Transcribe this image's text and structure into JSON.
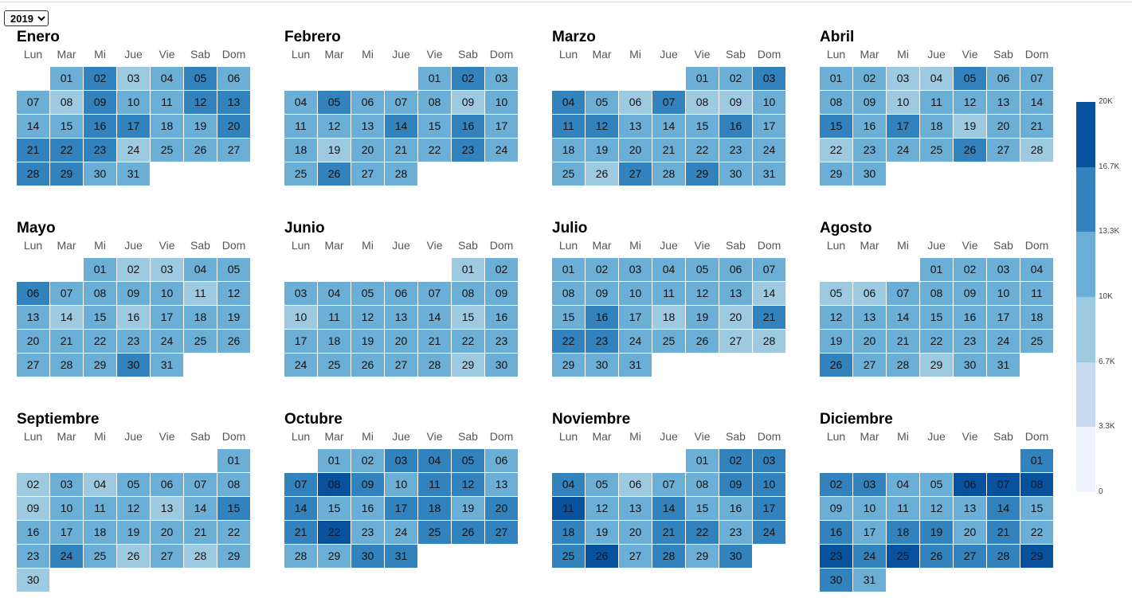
{
  "year_select": {
    "selected": "2019"
  },
  "weekdays": [
    "Lun",
    "Mar",
    "Mi",
    "Jue",
    "Vie",
    "Sab",
    "Dom"
  ],
  "palette": [
    "#eff3ff",
    "#c6dbef",
    "#9ecae1",
    "#6baed6",
    "#3182bd",
    "#08519c"
  ],
  "legend": {
    "ticks": [
      "20K",
      "16.7K",
      "13.3K",
      "10K",
      "6.7K",
      "3.3K",
      "0"
    ],
    "bands_top_to_bottom": [
      "#08519c",
      "#3182bd",
      "#6baed6",
      "#9ecae1",
      "#c6dbef",
      "#eff3ff"
    ]
  },
  "months": [
    {
      "name": "Enero",
      "start_offset": 1,
      "days": [
        "01",
        "02",
        "03",
        "04",
        "05",
        "06",
        "07",
        "08",
        "09",
        "10",
        "11",
        "12",
        "13",
        "14",
        "15",
        "16",
        "17",
        "18",
        "19",
        "20",
        "21",
        "22",
        "23",
        "24",
        "25",
        "26",
        "27",
        "28",
        "29",
        "30",
        "31"
      ],
      "levels": [
        3,
        4,
        2,
        3,
        4,
        3,
        3,
        2,
        4,
        3,
        3,
        4,
        4,
        3,
        3,
        4,
        4,
        3,
        3,
        4,
        4,
        4,
        4,
        2,
        3,
        3,
        3,
        4,
        4,
        3,
        3
      ]
    },
    {
      "name": "Febrero",
      "start_offset": 4,
      "days": [
        "01",
        "02",
        "03",
        "04",
        "05",
        "06",
        "07",
        "08",
        "09",
        "10",
        "11",
        "12",
        "13",
        "14",
        "15",
        "16",
        "17",
        "18",
        "19",
        "20",
        "21",
        "22",
        "23",
        "24",
        "25",
        "26",
        "27",
        "28"
      ],
      "levels": [
        3,
        4,
        3,
        3,
        4,
        3,
        3,
        3,
        2,
        3,
        3,
        3,
        3,
        4,
        3,
        4,
        3,
        3,
        2,
        3,
        3,
        3,
        4,
        3,
        3,
        4,
        3,
        3
      ]
    },
    {
      "name": "Marzo",
      "start_offset": 4,
      "days": [
        "01",
        "02",
        "03",
        "04",
        "05",
        "06",
        "07",
        "08",
        "09",
        "10",
        "11",
        "12",
        "13",
        "14",
        "15",
        "16",
        "17",
        "18",
        "19",
        "20",
        "21",
        "22",
        "23",
        "24",
        "25",
        "26",
        "27",
        "28",
        "29",
        "30",
        "31"
      ],
      "levels": [
        3,
        3,
        4,
        4,
        3,
        2,
        4,
        2,
        2,
        3,
        4,
        4,
        3,
        3,
        3,
        4,
        3,
        3,
        3,
        3,
        3,
        3,
        3,
        3,
        3,
        2,
        4,
        3,
        4,
        3,
        3
      ]
    },
    {
      "name": "Abril",
      "start_offset": 0,
      "days": [
        "01",
        "02",
        "03",
        "04",
        "05",
        "06",
        "07",
        "08",
        "09",
        "10",
        "11",
        "12",
        "13",
        "14",
        "15",
        "16",
        "17",
        "18",
        "19",
        "20",
        "21",
        "22",
        "23",
        "24",
        "25",
        "26",
        "27",
        "28",
        "29",
        "30"
      ],
      "levels": [
        3,
        3,
        2,
        2,
        4,
        3,
        3,
        3,
        3,
        2,
        3,
        3,
        3,
        3,
        4,
        3,
        4,
        3,
        2,
        3,
        3,
        2,
        3,
        3,
        3,
        4,
        3,
        2,
        3,
        3
      ]
    },
    {
      "name": "Mayo",
      "start_offset": 2,
      "days": [
        "01",
        "02",
        "03",
        "04",
        "05",
        "06",
        "07",
        "08",
        "09",
        "10",
        "11",
        "12",
        "13",
        "14",
        "15",
        "16",
        "17",
        "18",
        "19",
        "20",
        "21",
        "22",
        "23",
        "24",
        "25",
        "26",
        "27",
        "28",
        "29",
        "30",
        "31"
      ],
      "levels": [
        3,
        2,
        2,
        3,
        3,
        4,
        3,
        3,
        3,
        3,
        2,
        3,
        3,
        2,
        3,
        2,
        3,
        3,
        3,
        3,
        3,
        3,
        3,
        3,
        3,
        3,
        3,
        3,
        3,
        4,
        3
      ]
    },
    {
      "name": "Junio",
      "start_offset": 5,
      "days": [
        "01",
        "02",
        "03",
        "04",
        "05",
        "06",
        "07",
        "08",
        "09",
        "10",
        "11",
        "12",
        "13",
        "14",
        "15",
        "16",
        "17",
        "18",
        "19",
        "20",
        "21",
        "22",
        "23",
        "24",
        "25",
        "26",
        "27",
        "28",
        "29",
        "30"
      ],
      "levels": [
        2,
        3,
        3,
        3,
        3,
        3,
        3,
        3,
        3,
        2,
        3,
        3,
        3,
        3,
        2,
        3,
        3,
        3,
        3,
        3,
        3,
        3,
        3,
        3,
        3,
        3,
        3,
        3,
        2,
        3
      ]
    },
    {
      "name": "Julio",
      "start_offset": 0,
      "days": [
        "01",
        "02",
        "03",
        "04",
        "05",
        "06",
        "07",
        "08",
        "09",
        "10",
        "11",
        "12",
        "13",
        "14",
        "15",
        "16",
        "17",
        "18",
        "19",
        "20",
        "21",
        "22",
        "23",
        "24",
        "25",
        "26",
        "27",
        "28",
        "29",
        "30",
        "31"
      ],
      "levels": [
        3,
        3,
        3,
        3,
        3,
        3,
        3,
        3,
        3,
        3,
        3,
        3,
        3,
        2,
        3,
        4,
        3,
        2,
        3,
        2,
        4,
        4,
        4,
        3,
        3,
        3,
        2,
        2,
        3,
        3,
        3
      ]
    },
    {
      "name": "Agosto",
      "start_offset": 3,
      "days": [
        "01",
        "02",
        "03",
        "04",
        "05",
        "06",
        "07",
        "08",
        "09",
        "10",
        "11",
        "12",
        "13",
        "14",
        "15",
        "16",
        "17",
        "18",
        "19",
        "20",
        "21",
        "22",
        "23",
        "24",
        "25",
        "26",
        "27",
        "28",
        "29",
        "30",
        "31"
      ],
      "levels": [
        3,
        3,
        3,
        3,
        2,
        2,
        3,
        3,
        3,
        3,
        3,
        3,
        3,
        3,
        3,
        3,
        3,
        3,
        3,
        3,
        3,
        3,
        3,
        3,
        3,
        4,
        3,
        3,
        2,
        3,
        3
      ]
    },
    {
      "name": "Septiembre",
      "start_offset": 6,
      "days": [
        "01",
        "02",
        "03",
        "04",
        "05",
        "06",
        "07",
        "08",
        "09",
        "10",
        "11",
        "12",
        "13",
        "14",
        "15",
        "16",
        "17",
        "18",
        "19",
        "20",
        "21",
        "22",
        "23",
        "24",
        "25",
        "26",
        "27",
        "28",
        "29",
        "30"
      ],
      "levels": [
        3,
        2,
        3,
        2,
        3,
        3,
        3,
        3,
        2,
        3,
        3,
        3,
        2,
        3,
        4,
        3,
        3,
        3,
        3,
        3,
        3,
        3,
        3,
        4,
        3,
        2,
        3,
        2,
        3,
        2
      ]
    },
    {
      "name": "Octubre",
      "start_offset": 1,
      "days": [
        "01",
        "02",
        "03",
        "04",
        "05",
        "06",
        "07",
        "08",
        "09",
        "10",
        "11",
        "12",
        "13",
        "14",
        "15",
        "16",
        "17",
        "18",
        "19",
        "20",
        "21",
        "22",
        "23",
        "24",
        "25",
        "26",
        "27",
        "28",
        "29",
        "30",
        "31"
      ],
      "levels": [
        3,
        3,
        4,
        4,
        4,
        3,
        4,
        5,
        4,
        3,
        4,
        4,
        3,
        4,
        3,
        3,
        4,
        4,
        3,
        4,
        4,
        5,
        3,
        3,
        4,
        4,
        4,
        3,
        3,
        4,
        4
      ]
    },
    {
      "name": "Noviembre",
      "start_offset": 4,
      "days": [
        "01",
        "02",
        "03",
        "04",
        "05",
        "06",
        "07",
        "08",
        "09",
        "10",
        "11",
        "12",
        "13",
        "14",
        "15",
        "16",
        "17",
        "18",
        "19",
        "20",
        "21",
        "22",
        "23",
        "24",
        "25",
        "26",
        "27",
        "28",
        "29",
        "30"
      ],
      "levels": [
        3,
        4,
        4,
        4,
        3,
        2,
        3,
        3,
        4,
        4,
        5,
        3,
        3,
        4,
        3,
        3,
        4,
        4,
        3,
        3,
        4,
        4,
        3,
        4,
        4,
        5,
        3,
        4,
        3,
        4
      ]
    },
    {
      "name": "Diciembre",
      "start_offset": 6,
      "days": [
        "01",
        "02",
        "03",
        "04",
        "05",
        "06",
        "07",
        "08",
        "09",
        "10",
        "11",
        "12",
        "13",
        "14",
        "15",
        "16",
        "17",
        "18",
        "19",
        "20",
        "21",
        "22",
        "23",
        "24",
        "25",
        "26",
        "27",
        "28",
        "29",
        "30",
        "31"
      ],
      "levels": [
        4,
        4,
        4,
        3,
        3,
        5,
        5,
        5,
        3,
        3,
        3,
        3,
        3,
        4,
        3,
        4,
        3,
        4,
        4,
        3,
        4,
        3,
        5,
        4,
        5,
        4,
        4,
        4,
        5,
        4,
        3
      ]
    }
  ]
}
